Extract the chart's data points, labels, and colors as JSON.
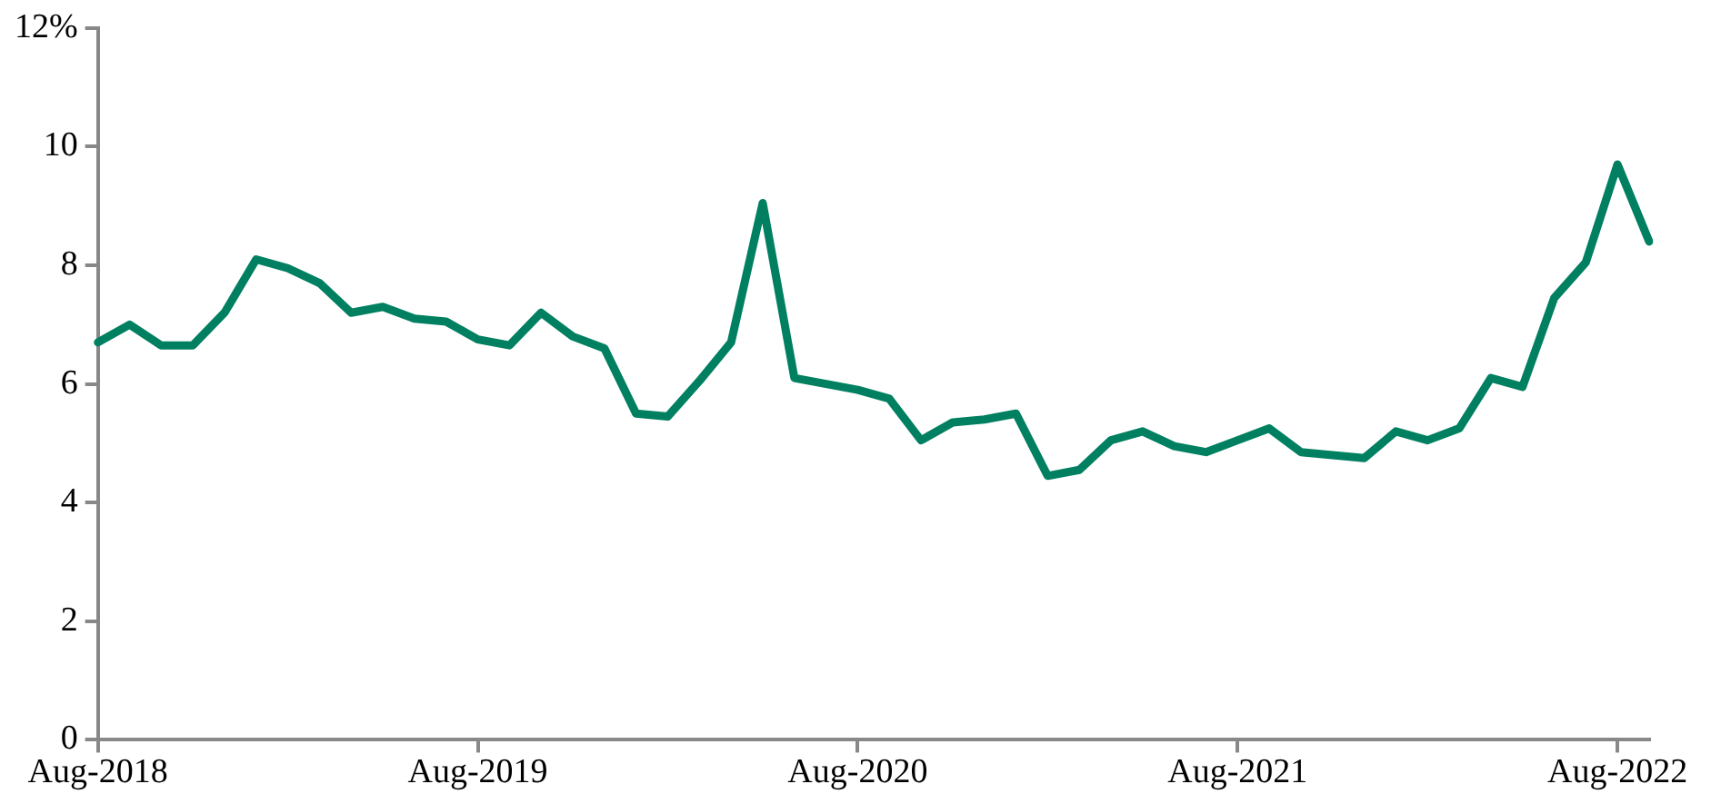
{
  "chart_data": {
    "type": "line",
    "categories": [
      "Aug-2018",
      null,
      null,
      null,
      null,
      null,
      null,
      null,
      null,
      null,
      null,
      null,
      "Aug-2019",
      null,
      null,
      null,
      null,
      null,
      null,
      null,
      null,
      null,
      null,
      null,
      "Aug-2020",
      null,
      null,
      null,
      null,
      null,
      null,
      null,
      null,
      null,
      null,
      null,
      "Aug-2021",
      null,
      null,
      null,
      null,
      null,
      null,
      null,
      null,
      null,
      null,
      null,
      "Aug-2022",
      null
    ],
    "series": [
      {
        "color": "#008060",
        "values": [
          6.7,
          7.0,
          6.65,
          6.65,
          7.2,
          8.1,
          7.95,
          7.7,
          7.2,
          7.3,
          7.1,
          7.05,
          6.75,
          6.65,
          7.2,
          6.8,
          6.6,
          5.5,
          5.45,
          6.05,
          6.7,
          9.05,
          6.1,
          6.0,
          5.9,
          5.75,
          5.05,
          5.35,
          5.4,
          5.5,
          4.45,
          4.55,
          5.05,
          5.2,
          4.95,
          4.85,
          5.05,
          5.25,
          4.85,
          4.8,
          4.75,
          5.2,
          5.05,
          5.25,
          6.1,
          5.95,
          7.45,
          8.05,
          9.7,
          8.4
        ]
      }
    ],
    "ylim": [
      0,
      12
    ],
    "yticks": [
      0,
      2,
      4,
      6,
      8,
      10,
      {
        "value": 12,
        "label": "12%"
      }
    ],
    "grid": false,
    "legend": false,
    "marker": "none",
    "line_style": "solid"
  }
}
